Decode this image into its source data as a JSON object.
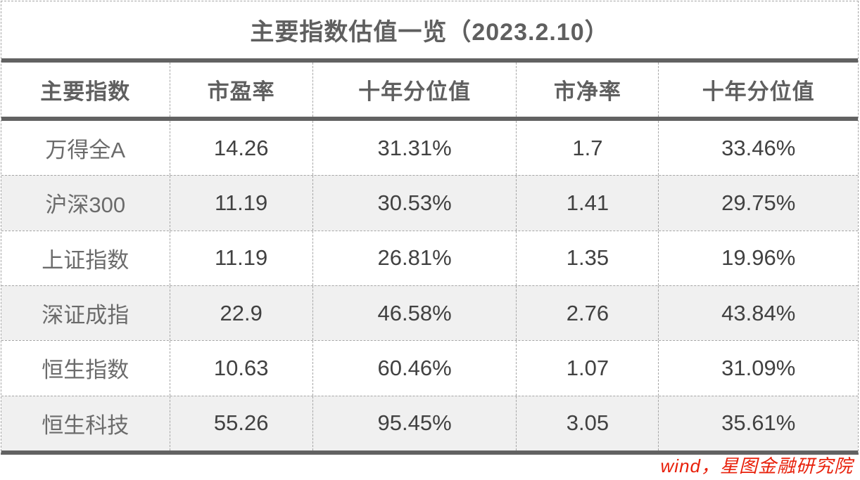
{
  "title": "主要指数估值一览（2023.2.10）",
  "source_note": "wind，星图金融研究院",
  "colors": {
    "heavy_rule": "#626262",
    "dashed_rule": "#a6a6a6",
    "header_text": "#5f5f5f",
    "label_text": "#6b6b6b",
    "value_text": "#414141",
    "alt_row_bg": "#f0f0f0",
    "source_text": "#e8200a"
  },
  "chart_data": {
    "type": "table",
    "title": "主要指数估值一览（2023.2.10）",
    "columns": [
      "主要指数",
      "市盈率",
      "十年分位值",
      "市净率",
      "十年分位值"
    ],
    "rows": [
      [
        "万得全A",
        "14.26",
        "31.31%",
        "1.7",
        "33.46%"
      ],
      [
        "沪深300",
        "11.19",
        "30.53%",
        "1.41",
        "29.75%"
      ],
      [
        "上证指数",
        "11.19",
        "26.81%",
        "1.35",
        "19.96%"
      ],
      [
        "深证成指",
        "22.9",
        "46.58%",
        "2.76",
        "43.84%"
      ],
      [
        "恒生指数",
        "10.63",
        "60.46%",
        "1.07",
        "31.09%"
      ],
      [
        "恒生科技",
        "55.26",
        "95.45%",
        "3.05",
        "35.61%"
      ]
    ]
  }
}
